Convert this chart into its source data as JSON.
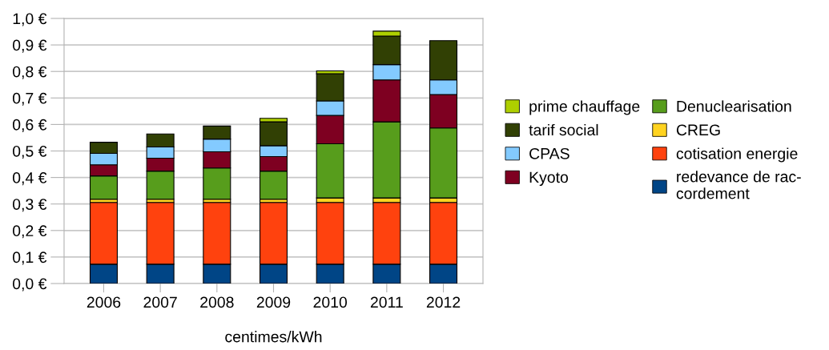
{
  "chart_data": {
    "type": "bar",
    "stacked": true,
    "xlabel": "centimes/kWh",
    "categories": [
      "2006",
      "2007",
      "2008",
      "2009",
      "2010",
      "2011",
      "2012"
    ],
    "series": [
      {
        "name": "redevance de rac-\ncordement",
        "color": "#004586",
        "values": [
          0.073,
          0.073,
          0.073,
          0.073,
          0.073,
          0.073,
          0.073
        ]
      },
      {
        "name": "cotisation energie",
        "color": "#ff420e",
        "values": [
          0.233,
          0.233,
          0.233,
          0.233,
          0.233,
          0.233,
          0.233
        ]
      },
      {
        "name": "CREG",
        "color": "#ffd320",
        "values": [
          0.012,
          0.012,
          0.012,
          0.012,
          0.017,
          0.017,
          0.017
        ]
      },
      {
        "name": "Denuclearisation",
        "color": "#579d1c",
        "values": [
          0.088,
          0.106,
          0.118,
          0.106,
          0.204,
          0.287,
          0.264
        ]
      },
      {
        "name": "Kyoto",
        "color": "#7e0021",
        "values": [
          0.042,
          0.049,
          0.061,
          0.055,
          0.107,
          0.158,
          0.126
        ]
      },
      {
        "name": "CPAS",
        "color": "#83caff",
        "values": [
          0.043,
          0.042,
          0.048,
          0.041,
          0.055,
          0.058,
          0.055
        ]
      },
      {
        "name": "tarif social",
        "color": "#314004",
        "values": [
          0.042,
          0.049,
          0.049,
          0.09,
          0.102,
          0.107,
          0.148
        ]
      },
      {
        "name": "prime chauffage",
        "color": "#aecf00",
        "values": [
          null,
          null,
          null,
          0.013,
          0.011,
          0.019,
          null
        ]
      }
    ],
    "ylim": [
      0,
      1
    ],
    "yticks": [
      {
        "value": 0,
        "label": "0,0 €"
      },
      {
        "value": 0.1,
        "label": "0,1 €"
      },
      {
        "value": 0.2,
        "label": "0,2 €"
      },
      {
        "value": 0.3,
        "label": "0,3 €"
      },
      {
        "value": 0.4,
        "label": "0,4 €"
      },
      {
        "value": 0.5,
        "label": "0,5 €"
      },
      {
        "value": 0.6,
        "label": "0,6 €"
      },
      {
        "value": 0.7,
        "label": "0,7 €"
      },
      {
        "value": 0.8,
        "label": "0,8 €"
      },
      {
        "value": 0.9,
        "label": "0,9 €"
      },
      {
        "value": 1,
        "label": "1,0 €"
      }
    ],
    "grid": "y",
    "legend": "right"
  }
}
